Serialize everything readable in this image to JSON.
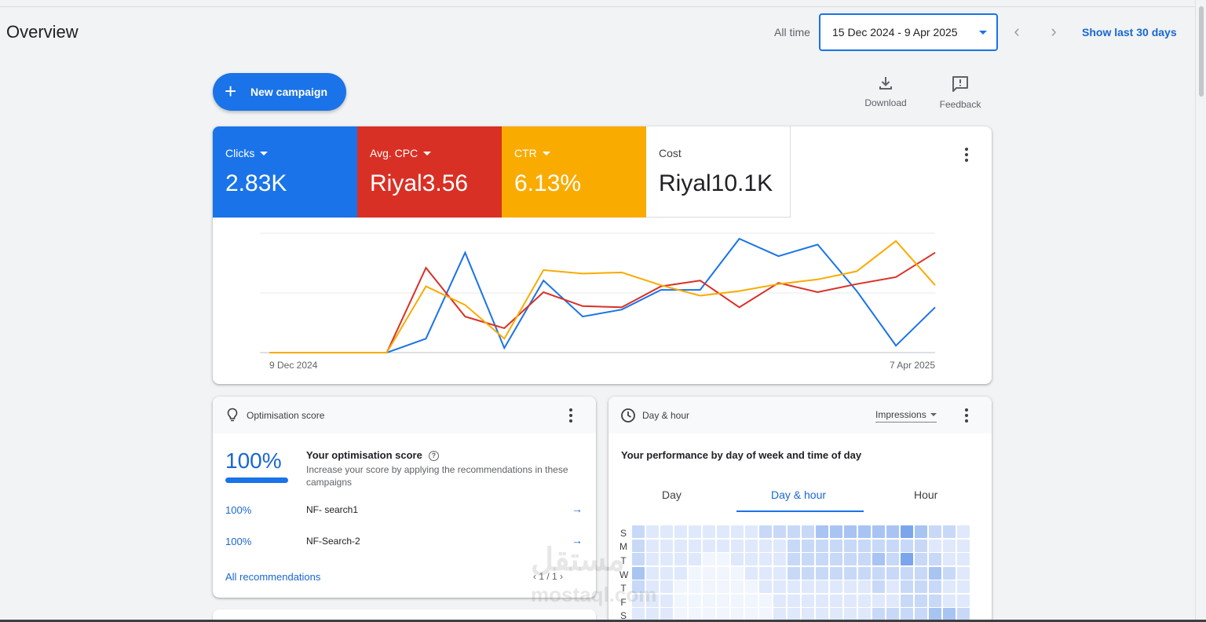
{
  "header": {
    "title": "Overview",
    "range_label": "All time",
    "date_range": "15 Dec 2024 - 9 Apr 2025",
    "show_last": "Show last 30 days"
  },
  "actions": {
    "new_campaign": "New campaign",
    "download": "Download",
    "feedback": "Feedback"
  },
  "metrics": [
    {
      "label": "Clicks",
      "value": "2.83K",
      "color": "#1a73e8"
    },
    {
      "label": "Avg. CPC",
      "value": "Riyal3.56",
      "color": "#d93025"
    },
    {
      "label": "CTR",
      "value": "6.13%",
      "color": "#f9ab00"
    },
    {
      "label": "Cost",
      "value": "Riyal10.1K",
      "color": "#ffffff"
    }
  ],
  "chart_data": {
    "type": "line",
    "x_labels": [
      "9 Dec 2024",
      "7 Apr 2025"
    ],
    "grid": true,
    "series": [
      {
        "color": "#1a73e8",
        "values": [
          0,
          0,
          0,
          0,
          0.12,
          0.86,
          0.04,
          0.62,
          0.31,
          0.37,
          0.54,
          0.54,
          0.98,
          0.83,
          0.93,
          0.53,
          0.06,
          0.39
        ]
      },
      {
        "color": "#d93025",
        "values": [
          0,
          0,
          0,
          0,
          0.73,
          0.31,
          0.21,
          0.52,
          0.4,
          0.39,
          0.57,
          0.62,
          0.39,
          0.6,
          0.52,
          0.59,
          0.65,
          0.86
        ]
      },
      {
        "color": "#f9ab00",
        "values": [
          0,
          0,
          0,
          0,
          0.57,
          0.41,
          0.12,
          0.71,
          0.68,
          0.69,
          0.58,
          0.49,
          0.53,
          0.59,
          0.63,
          0.7,
          0.96,
          0.58
        ]
      }
    ]
  },
  "optimisation": {
    "title": "Optimisation score",
    "score": "100%",
    "heading": "Your optimisation score",
    "description": "Increase your score by applying the recommendations in these campaigns",
    "rows": [
      {
        "pct": "100%",
        "name": "NF- search1"
      },
      {
        "pct": "100%",
        "name": "NF-Search-2"
      }
    ],
    "all_label": "All recommendations",
    "pager": "1 / 1"
  },
  "dayhour": {
    "title": "Day & hour",
    "metric": "Impressions",
    "heading": "Your performance by day of week and time of day",
    "tabs": [
      "Day",
      "Day & hour",
      "Hour"
    ],
    "active_tab": 1,
    "days": [
      "S",
      "M",
      "T",
      "W",
      "T",
      "F",
      "S"
    ],
    "heat": [
      [
        2,
        1,
        1,
        1,
        1,
        1,
        1,
        1,
        1,
        2,
        2,
        2,
        2,
        3,
        3,
        3,
        3,
        3,
        3,
        4,
        3,
        2,
        2,
        1
      ],
      [
        2,
        1,
        1,
        1,
        1,
        1,
        1,
        1,
        1,
        1,
        1,
        2,
        2,
        2,
        2,
        2,
        2,
        2,
        2,
        2,
        2,
        1,
        1,
        1
      ],
      [
        2,
        1,
        1,
        1,
        1,
        0,
        0,
        1,
        1,
        1,
        1,
        2,
        2,
        2,
        2,
        2,
        2,
        3,
        2,
        4,
        2,
        2,
        1,
        1
      ],
      [
        3,
        1,
        1,
        1,
        0,
        0,
        0,
        0,
        1,
        1,
        1,
        2,
        2,
        2,
        2,
        2,
        2,
        2,
        2,
        2,
        2,
        3,
        2,
        1
      ],
      [
        2,
        1,
        1,
        0,
        0,
        0,
        0,
        0,
        0,
        1,
        1,
        1,
        1,
        1,
        1,
        1,
        1,
        2,
        1,
        2,
        2,
        2,
        1,
        1
      ],
      [
        1,
        1,
        1,
        0,
        0,
        0,
        0,
        0,
        0,
        0,
        1,
        1,
        1,
        1,
        1,
        1,
        1,
        1,
        1,
        2,
        2,
        2,
        1,
        1
      ],
      [
        1,
        1,
        1,
        0,
        0,
        0,
        0,
        0,
        0,
        0,
        1,
        1,
        1,
        1,
        1,
        1,
        1,
        2,
        2,
        2,
        2,
        3,
        3,
        2
      ]
    ]
  },
  "watermark": {
    "line1": "مستقل",
    "line2": "mostaql.com"
  }
}
